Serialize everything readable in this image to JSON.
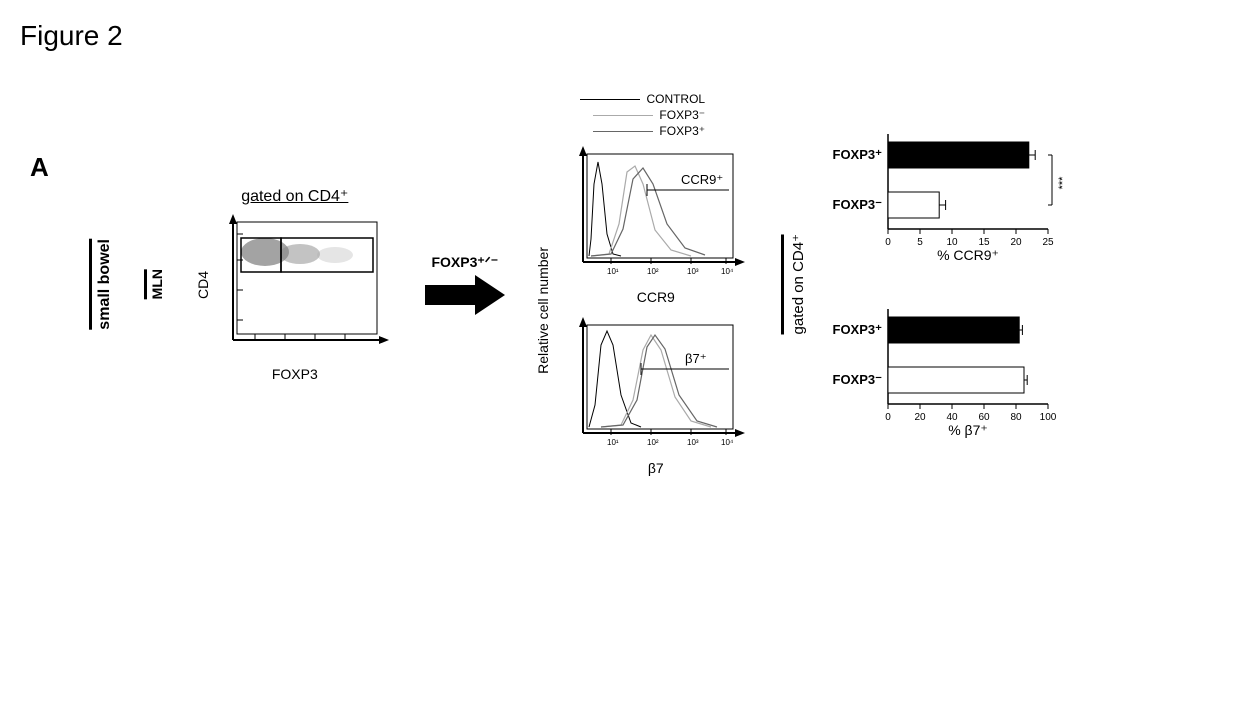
{
  "figure_title": "Figure 2",
  "panel_label": "A",
  "side_label_outer": "small bowel",
  "side_label_inner": "MLN",
  "gated_top": "gated on CD4⁺",
  "scatter": {
    "y_label": "CD4",
    "x_label": "FOXP3"
  },
  "arrow_label": "FOXP3⁺ᐟ⁻",
  "legend": {
    "control": "CONTROL",
    "foxp3_neg": "FOXP3⁻",
    "foxp3_pos": "FOXP3⁺"
  },
  "histograms": {
    "rel_label": "Relative cell number",
    "top": {
      "gate_label": "CCR9⁺",
      "x_label": "CCR9"
    },
    "bottom": {
      "gate_label": "β7⁺",
      "x_label": "β7"
    }
  },
  "bars": {
    "gated_label": "gated on CD4⁺",
    "ccr9": {
      "type": "bar-horizontal",
      "x_label": "% CCR9⁺",
      "xlim": [
        0,
        25
      ],
      "ticks": [
        0,
        5,
        10,
        15,
        20,
        25
      ],
      "cat_pos": "FOXP3⁺",
      "cat_neg": "FOXP3⁻",
      "val_pos": 22,
      "val_neg": 8,
      "err_pos": 1,
      "err_neg": 1,
      "color_pos": "#000000",
      "color_neg": "#ffffff",
      "signif": "***"
    },
    "b7": {
      "type": "bar-horizontal",
      "x_label": "% β7⁺",
      "xlim": [
        0,
        100
      ],
      "ticks": [
        0,
        20,
        40,
        60,
        80,
        100
      ],
      "cat_pos": "FOXP3⁺",
      "cat_neg": "FOXP3⁻",
      "val_pos": 82,
      "val_neg": 85,
      "err_pos": 2,
      "err_neg": 2,
      "color_pos": "#000000",
      "color_neg": "#ffffff"
    }
  }
}
